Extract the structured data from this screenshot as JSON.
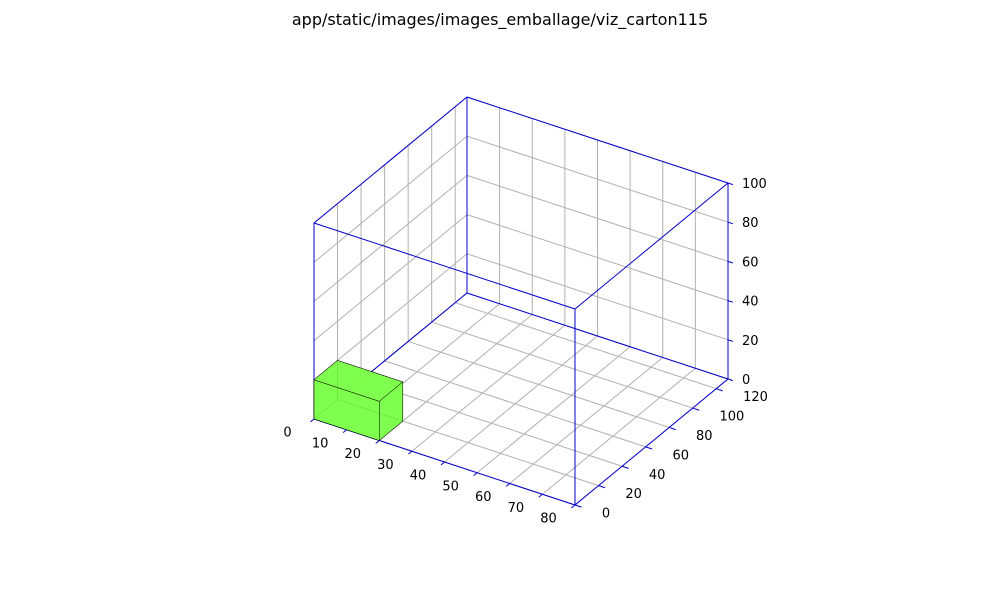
{
  "chart_data": {
    "type": "3d-box",
    "title": "app/static/images/images_emballage/viz_carton115",
    "xlim": [
      0,
      80
    ],
    "ylim": [
      0,
      130
    ],
    "zlim": [
      0,
      100
    ],
    "x_ticks": [
      0,
      10,
      20,
      30,
      40,
      50,
      60,
      70,
      80
    ],
    "y_ticks": [
      0,
      20,
      40,
      60,
      80,
      100,
      120
    ],
    "z_ticks": [
      0,
      20,
      40,
      60,
      80,
      100
    ],
    "grid": true,
    "container": {
      "x": [
        0,
        80
      ],
      "y": [
        0,
        130
      ],
      "z": [
        0,
        100
      ],
      "color": "#0000cc"
    },
    "items": [
      {
        "x": [
          0,
          20
        ],
        "y": [
          0,
          20
        ],
        "z": [
          0,
          20
        ],
        "color": "#7dff4a"
      }
    ]
  }
}
